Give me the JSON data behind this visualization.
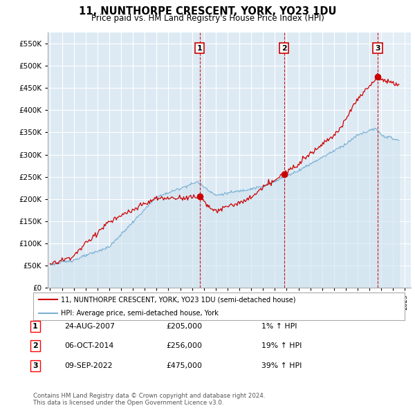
{
  "title": "11, NUNTHORPE CRESCENT, YORK, YO23 1DU",
  "subtitle": "Price paid vs. HM Land Registry's House Price Index (HPI)",
  "yticks": [
    0,
    50000,
    100000,
    150000,
    200000,
    250000,
    300000,
    350000,
    400000,
    450000,
    500000,
    550000
  ],
  "ylim": [
    0,
    575000
  ],
  "xlim_start": 1994.8,
  "xlim_end": 2025.5,
  "xtick_years": [
    1995,
    1996,
    1997,
    1998,
    1999,
    2000,
    2001,
    2002,
    2003,
    2004,
    2005,
    2006,
    2007,
    2008,
    2009,
    2010,
    2011,
    2012,
    2013,
    2014,
    2015,
    2016,
    2017,
    2018,
    2019,
    2020,
    2021,
    2022,
    2023,
    2024,
    2025
  ],
  "hpi_line_color": "#7ab0d4",
  "hpi_fill_color": "#d0e4f0",
  "price_line_color": "#cc0000",
  "vline_color": "#cc0000",
  "sale_points": [
    {
      "date_num": 2007.65,
      "price": 205000,
      "label": "1"
    },
    {
      "date_num": 2014.77,
      "price": 256000,
      "label": "2"
    },
    {
      "date_num": 2022.69,
      "price": 475000,
      "label": "3"
    }
  ],
  "legend_entries": [
    "11, NUNTHORPE CRESCENT, YORK, YO23 1DU (semi-detached house)",
    "HPI: Average price, semi-detached house, York"
  ],
  "table_rows": [
    {
      "num": "1",
      "date": "24-AUG-2007",
      "price": "£205,000",
      "hpi": "1% ↑ HPI"
    },
    {
      "num": "2",
      "date": "06-OCT-2014",
      "price": "£256,000",
      "hpi": "19% ↑ HPI"
    },
    {
      "num": "3",
      "date": "09-SEP-2022",
      "price": "£475,000",
      "hpi": "39% ↑ HPI"
    }
  ],
  "footer": "Contains HM Land Registry data © Crown copyright and database right 2024.\nThis data is licensed under the Open Government Licence v3.0.",
  "plot_bg_color": "#ddeaf4"
}
